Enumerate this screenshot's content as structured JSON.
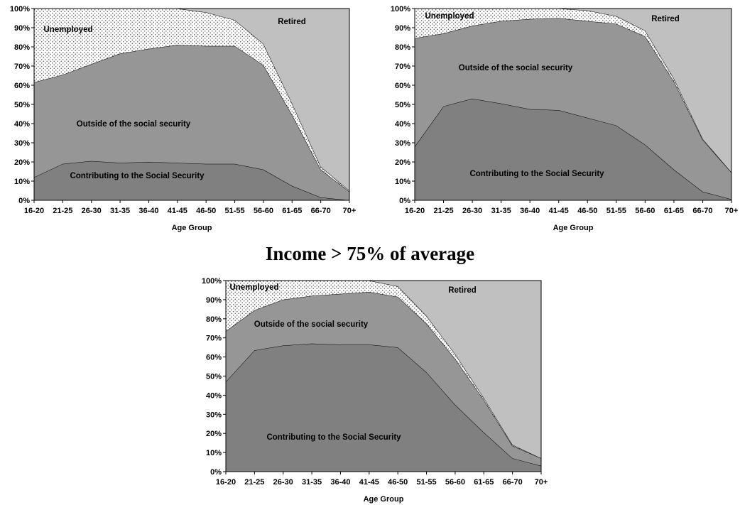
{
  "figure": {
    "middle_title": "Income > 75% of average"
  },
  "chart_data": [
    {
      "type": "area",
      "stacked": true,
      "title": "",
      "xlabel": "Age Group",
      "ylabel": "",
      "ylim": [
        0,
        100
      ],
      "y_tick_format": "percent",
      "grid": false,
      "categories": [
        "16-20",
        "21-25",
        "26-30",
        "31-35",
        "36-40",
        "41-45",
        "46-50",
        "51-55",
        "56-60",
        "61-65",
        "66-70",
        "70+"
      ],
      "y_ticks": [
        0,
        10,
        20,
        30,
        40,
        50,
        60,
        70,
        80,
        90,
        100
      ],
      "series": [
        {
          "name": "Contributing to the Social Security",
          "values": [
            12,
            19,
            20.5,
            19.5,
            20,
            19.5,
            19,
            19,
            16,
            7.5,
            1.5,
            0
          ]
        },
        {
          "name": "Outside of the social security",
          "values": [
            49.5,
            46.5,
            50.5,
            57,
            59,
            61.5,
            61.5,
            61.5,
            54.5,
            37,
            14.5,
            4.5
          ]
        },
        {
          "name": "Unemployed",
          "values": [
            38.5,
            34.5,
            29,
            23.5,
            21,
            19,
            17.5,
            13.5,
            11,
            6,
            1.5,
            0.5
          ]
        },
        {
          "name": "Retired",
          "values": [
            0,
            0,
            0,
            0,
            0,
            0,
            2,
            6,
            18.5,
            49.5,
            82.5,
            95
          ]
        }
      ],
      "colors": {
        "Contributing to the Social Security": "#808080",
        "Outside of the social security": "#969696",
        "Unemployed": "#ececec",
        "Retired": "#c0c0c0"
      },
      "unemployed_pattern": "dots"
    },
    {
      "type": "area",
      "stacked": true,
      "title": "",
      "xlabel": "Age Group",
      "ylabel": "",
      "ylim": [
        0,
        100
      ],
      "y_tick_format": "percent",
      "grid": false,
      "categories": [
        "16-20",
        "21-25",
        "26-30",
        "31-35",
        "36-40",
        "41-45",
        "46-50",
        "51-55",
        "56-60",
        "61-65",
        "66-70",
        "70+"
      ],
      "y_ticks": [
        0,
        10,
        20,
        30,
        40,
        50,
        60,
        70,
        80,
        90,
        100
      ],
      "series": [
        {
          "name": "Contributing to the Social Security",
          "values": [
            28,
            49,
            53,
            50.5,
            47.5,
            47,
            43,
            39,
            29,
            16,
            4.5,
            0.5
          ]
        },
        {
          "name": "Outside of the social security",
          "values": [
            56.5,
            38,
            38,
            43,
            47,
            48,
            50.5,
            53,
            56.5,
            46,
            27,
            14
          ]
        },
        {
          "name": "Unemployed",
          "values": [
            15.5,
            13,
            9,
            6.5,
            5.5,
            5,
            5.5,
            4,
            3,
            1.5,
            0.5,
            0
          ]
        },
        {
          "name": "Retired",
          "values": [
            0,
            0,
            0,
            0,
            0,
            0,
            1,
            4,
            11.5,
            36.5,
            68,
            85.5
          ]
        }
      ],
      "colors": {
        "Contributing to the Social Security": "#808080",
        "Outside of the social security": "#969696",
        "Unemployed": "#ececec",
        "Retired": "#c0c0c0"
      },
      "unemployed_pattern": "dots"
    },
    {
      "type": "area",
      "stacked": true,
      "title": "",
      "xlabel": "Age Group",
      "ylabel": "",
      "ylim": [
        0,
        100
      ],
      "y_tick_format": "percent",
      "grid": false,
      "categories": [
        "16-20",
        "21-25",
        "26-30",
        "31-35",
        "36-40",
        "41-45",
        "46-50",
        "51-55",
        "56-60",
        "61-65",
        "66-70",
        "70+"
      ],
      "y_ticks": [
        0,
        10,
        20,
        30,
        40,
        50,
        60,
        70,
        80,
        90,
        100
      ],
      "series": [
        {
          "name": "Contributing to the Social Security",
          "values": [
            47,
            63.5,
            66,
            67,
            66.5,
            66.5,
            65,
            52,
            35,
            20.5,
            7,
            3
          ]
        },
        {
          "name": "Outside of the social security",
          "values": [
            26.5,
            21,
            24,
            25,
            26.5,
            27.5,
            26.5,
            25.5,
            24,
            17,
            6.5,
            4
          ]
        },
        {
          "name": "Unemployed",
          "values": [
            26.5,
            15.5,
            10,
            8,
            7,
            6,
            5.5,
            4,
            2.5,
            1,
            0.5,
            0
          ]
        },
        {
          "name": "Retired",
          "values": [
            0,
            0,
            0,
            0,
            0,
            0,
            3,
            18.5,
            38.5,
            61.5,
            86,
            93
          ]
        }
      ],
      "colors": {
        "Contributing to the Social Security": "#808080",
        "Outside of the social security": "#969696",
        "Unemployed": "#ececec",
        "Retired": "#c0c0c0"
      },
      "unemployed_pattern": "dots"
    }
  ]
}
